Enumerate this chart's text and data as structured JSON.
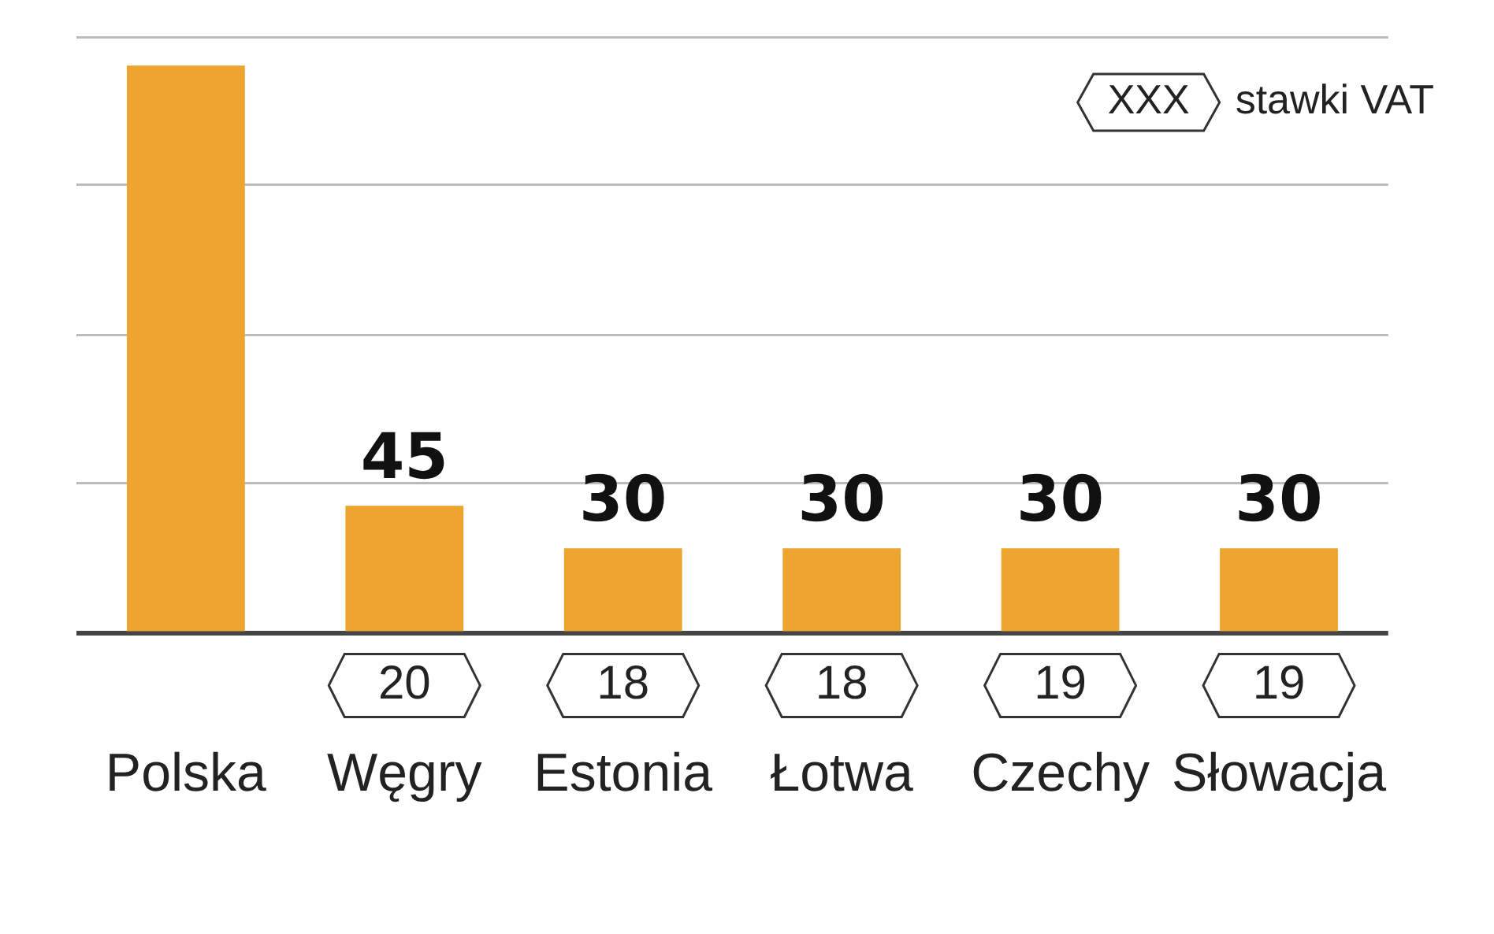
{
  "chart_data": {
    "type": "bar",
    "categories": [
      "Polska",
      "Węgry",
      "Estonia",
      "Łotwa",
      "Czechy",
      "Słowacja"
    ],
    "values": [
      200,
      45,
      30,
      30,
      30,
      30
    ],
    "value_labels": [
      null,
      "45",
      "30",
      "30",
      "30",
      "30"
    ],
    "color": "#eea52f",
    "ylim": [
      0,
      212
    ],
    "yticks": [
      {
        "value": 0,
        "label": null
      },
      {
        "value": 53,
        "label": null
      },
      {
        "value": 105,
        "label": null
      },
      {
        "value": 158,
        "label": null
      },
      {
        "value": 210,
        "label": null
      }
    ],
    "grid": "y",
    "tick_labels": "x",
    "annotations": [
      "XXX",
      "stawki VAT",
      "20",
      "18",
      "18",
      "19",
      "19"
    ]
  }
}
